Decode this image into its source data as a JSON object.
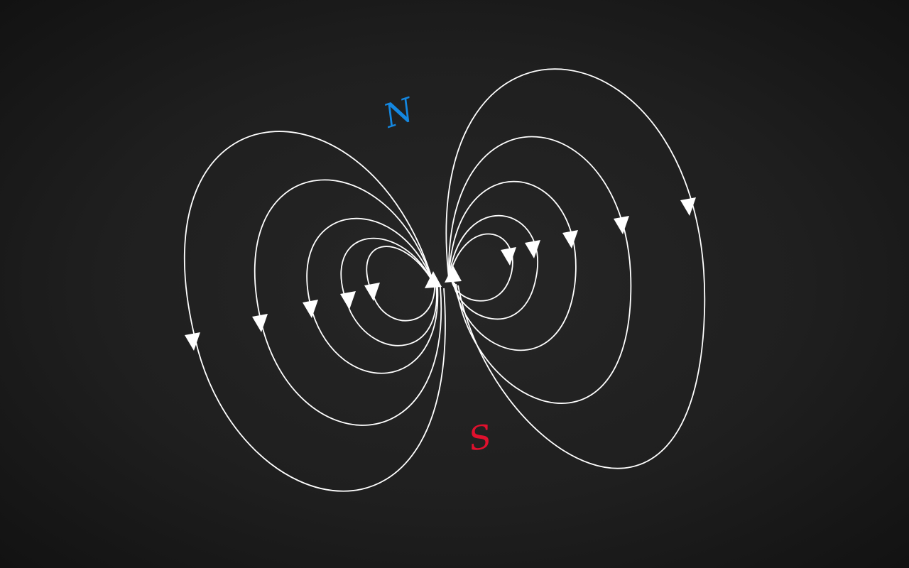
{
  "poles": {
    "north": {
      "label": "N",
      "color": "#1487e0"
    },
    "south": {
      "label": "S",
      "color": "#e0102d"
    }
  },
  "colors": {
    "field_line": "#ffffff",
    "arrow": "#ffffff"
  },
  "field_lines": {
    "left_loops": 5,
    "right_loops": 5,
    "arrow_direction_left_lobe": "counterclockwise-down-on-outer-edge",
    "arrow_direction_right_lobe": "clockwise-down-on-outer-edge"
  }
}
